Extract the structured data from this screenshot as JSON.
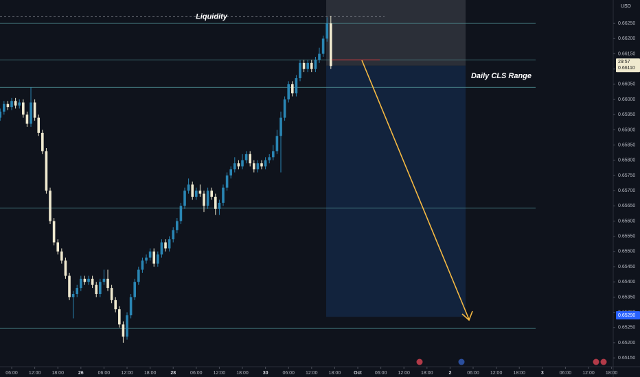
{
  "chart_data": {
    "type": "candlestick",
    "currency": "USD",
    "up_color": "#2a86b4",
    "down_color": "#efe9cf",
    "level_color": "#4f8f93",
    "xlim": [
      -0.04,
      159.43
    ],
    "ylim": [
      0.65121,
      0.66327
    ],
    "xticks": [
      {
        "value": 3,
        "label": "06:00"
      },
      {
        "value": 9,
        "label": "12:00"
      },
      {
        "value": 15,
        "label": "18:00"
      },
      {
        "value": 21,
        "label": "26"
      },
      {
        "value": 27,
        "label": "06:00"
      },
      {
        "value": 33,
        "label": "12:00"
      },
      {
        "value": 39,
        "label": "18:00"
      },
      {
        "value": 45,
        "label": "28"
      },
      {
        "value": 51,
        "label": "06:00"
      },
      {
        "value": 57,
        "label": "12:00"
      },
      {
        "value": 63,
        "label": "18:00"
      },
      {
        "value": 69,
        "label": "30"
      },
      {
        "value": 75,
        "label": "06:00"
      },
      {
        "value": 81,
        "label": "12:00"
      },
      {
        "value": 87,
        "label": "18:00"
      },
      {
        "value": 93,
        "label": "Oct"
      },
      {
        "value": 99,
        "label": "06:00"
      },
      {
        "value": 105,
        "label": "12:00"
      },
      {
        "value": 111,
        "label": "18:00"
      },
      {
        "value": 117,
        "label": "2"
      },
      {
        "value": 123,
        "label": "06:00"
      },
      {
        "value": 129,
        "label": "12:00"
      },
      {
        "value": 135,
        "label": "18:00"
      },
      {
        "value": 141,
        "label": "3"
      },
      {
        "value": 147,
        "label": "06:00"
      },
      {
        "value": 153,
        "label": "12:00"
      },
      {
        "value": 159,
        "label": "18:00"
      }
    ],
    "yticks": [
      {
        "value": 0.6515,
        "label": "0.65150"
      },
      {
        "value": 0.652,
        "label": "0.65200"
      },
      {
        "value": 0.6525,
        "label": "0.65250"
      },
      {
        "value": 0.653,
        "label": "0.65300"
      },
      {
        "value": 0.6535,
        "label": "0.65350"
      },
      {
        "value": 0.654,
        "label": "0.65400"
      },
      {
        "value": 0.6545,
        "label": "0.65450"
      },
      {
        "value": 0.655,
        "label": "0.65500"
      },
      {
        "value": 0.6555,
        "label": "0.65550"
      },
      {
        "value": 0.656,
        "label": "0.65600"
      },
      {
        "value": 0.6565,
        "label": "0.65650"
      },
      {
        "value": 0.657,
        "label": "0.65700"
      },
      {
        "value": 0.6575,
        "label": "0.65750"
      },
      {
        "value": 0.658,
        "label": "0.65800"
      },
      {
        "value": 0.6585,
        "label": "0.65850"
      },
      {
        "value": 0.659,
        "label": "0.65900"
      },
      {
        "value": 0.6595,
        "label": "0.65950"
      },
      {
        "value": 0.66,
        "label": "0.66000"
      },
      {
        "value": 0.6605,
        "label": "0.66050"
      },
      {
        "value": 0.661,
        "label": "0.66100"
      },
      {
        "value": 0.6615,
        "label": "0.66150"
      },
      {
        "value": 0.662,
        "label": "0.66200"
      },
      {
        "value": 0.6625,
        "label": "0.66250"
      }
    ],
    "open": [
      0.6594,
      0.6596,
      0.65985,
      0.65975,
      0.65995,
      0.6598,
      0.6599,
      0.6595,
      0.6592,
      0.6599,
      0.6594,
      0.6589,
      0.6583,
      0.657,
      0.656,
      0.6553,
      0.655,
      0.6547,
      0.6542,
      0.6535,
      0.6536,
      0.6538,
      0.6541,
      0.654,
      0.6541,
      0.6539,
      0.6536,
      0.654,
      0.6541,
      0.6538,
      0.6534,
      0.6531,
      0.6526,
      0.6522,
      0.6529,
      0.6535,
      0.654,
      0.6544,
      0.6547,
      0.6548,
      0.655,
      0.6546,
      0.6549,
      0.6553,
      0.6551,
      0.6554,
      0.6557,
      0.656,
      0.6565,
      0.657,
      0.6572,
      0.6568,
      0.657,
      0.6569,
      0.6565,
      0.657,
      0.6568,
      0.6564,
      0.6566,
      0.6571,
      0.6575,
      0.6577,
      0.6579,
      0.6578,
      0.658,
      0.6582,
      0.6579,
      0.6577,
      0.6579,
      0.6578,
      0.658,
      0.6581,
      0.6583,
      0.6588,
      0.6594,
      0.66,
      0.6605,
      0.6602,
      0.6607,
      0.6612,
      0.661,
      0.6612,
      0.661,
      0.6613,
      0.6615,
      0.662,
      0.6625
    ],
    "high": [
      0.6597,
      0.65995,
      0.65995,
      0.66005,
      0.66005,
      0.66,
      0.66,
      0.6596,
      0.6604,
      0.66,
      0.6595,
      0.659,
      0.6584,
      0.6571,
      0.6561,
      0.6554,
      0.6551,
      0.6548,
      0.6543,
      0.6537,
      0.6539,
      0.6542,
      0.6542,
      0.6542,
      0.6542,
      0.654,
      0.6541,
      0.6544,
      0.6544,
      0.6539,
      0.6535,
      0.6532,
      0.6527,
      0.653,
      0.6536,
      0.6541,
      0.6545,
      0.6548,
      0.6549,
      0.6551,
      0.6551,
      0.655,
      0.6554,
      0.6554,
      0.6555,
      0.6558,
      0.6561,
      0.6566,
      0.6571,
      0.6574,
      0.6573,
      0.6571,
      0.6572,
      0.657,
      0.6571,
      0.6571,
      0.6569,
      0.6567,
      0.6572,
      0.6576,
      0.6578,
      0.6581,
      0.658,
      0.6582,
      0.6583,
      0.6583,
      0.658,
      0.658,
      0.658,
      0.6581,
      0.6582,
      0.6585,
      0.659,
      0.6596,
      0.6601,
      0.6606,
      0.6606,
      0.6608,
      0.6613,
      0.6613,
      0.6613,
      0.6613,
      0.6614,
      0.6617,
      0.6621,
      0.6627,
      0.66275
    ],
    "low": [
      0.6593,
      0.6595,
      0.65965,
      0.65965,
      0.6597,
      0.6597,
      0.6594,
      0.6591,
      0.6591,
      0.6593,
      0.6588,
      0.6582,
      0.6569,
      0.6559,
      0.6552,
      0.6549,
      0.6546,
      0.6541,
      0.6534,
      0.6528,
      0.6535,
      0.6537,
      0.6539,
      0.6539,
      0.6538,
      0.6535,
      0.6535,
      0.6539,
      0.6537,
      0.6533,
      0.653,
      0.6525,
      0.652,
      0.6521,
      0.6528,
      0.6534,
      0.6539,
      0.6543,
      0.6546,
      0.6547,
      0.6545,
      0.6545,
      0.6548,
      0.655,
      0.655,
      0.6553,
      0.6556,
      0.6559,
      0.6564,
      0.6569,
      0.6567,
      0.6567,
      0.6568,
      0.6563,
      0.6564,
      0.6567,
      0.6562,
      0.6562,
      0.6565,
      0.657,
      0.6574,
      0.6576,
      0.6577,
      0.6577,
      0.6579,
      0.6578,
      0.6576,
      0.6576,
      0.6577,
      0.6577,
      0.6579,
      0.658,
      0.6582,
      0.6576,
      0.6593,
      0.6599,
      0.6601,
      0.6601,
      0.6606,
      0.6609,
      0.6609,
      0.6609,
      0.6609,
      0.6612,
      0.6614,
      0.6619,
      0.661
    ],
    "close": [
      0.6596,
      0.65985,
      0.65975,
      0.65995,
      0.6598,
      0.6599,
      0.6595,
      0.6592,
      0.6599,
      0.6594,
      0.6589,
      0.6583,
      0.657,
      0.656,
      0.6553,
      0.655,
      0.6547,
      0.6542,
      0.6535,
      0.6536,
      0.6538,
      0.6541,
      0.654,
      0.6541,
      0.6539,
      0.6536,
      0.654,
      0.6541,
      0.6538,
      0.6534,
      0.6531,
      0.6526,
      0.6522,
      0.6529,
      0.6535,
      0.654,
      0.6544,
      0.6547,
      0.6548,
      0.655,
      0.6546,
      0.6549,
      0.6553,
      0.6551,
      0.6554,
      0.6557,
      0.656,
      0.6565,
      0.657,
      0.6572,
      0.6568,
      0.657,
      0.6569,
      0.6565,
      0.657,
      0.6568,
      0.6564,
      0.6566,
      0.6571,
      0.6575,
      0.6577,
      0.6579,
      0.6578,
      0.658,
      0.6582,
      0.6579,
      0.6577,
      0.6579,
      0.6578,
      0.658,
      0.6581,
      0.6583,
      0.6588,
      0.6594,
      0.66,
      0.6605,
      0.6602,
      0.6607,
      0.6612,
      0.661,
      0.6612,
      0.661,
      0.6613,
      0.6615,
      0.662,
      0.6625,
      0.6611
    ],
    "levels": [
      0.6625,
      0.6613,
      0.6604,
      0.65643,
      0.65247
    ],
    "liquidity": {
      "value": 0.66272,
      "label": "Liquidity"
    },
    "range_label": "Daily CLS Range",
    "position": {
      "entry": 0.66111,
      "target": 0.65285
    },
    "price_labels": [
      {
        "value": 0.6611,
        "label": "0.66110",
        "countdown": "29:57"
      },
      {
        "value": 0.6529,
        "label": "0.65290"
      }
    ]
  }
}
